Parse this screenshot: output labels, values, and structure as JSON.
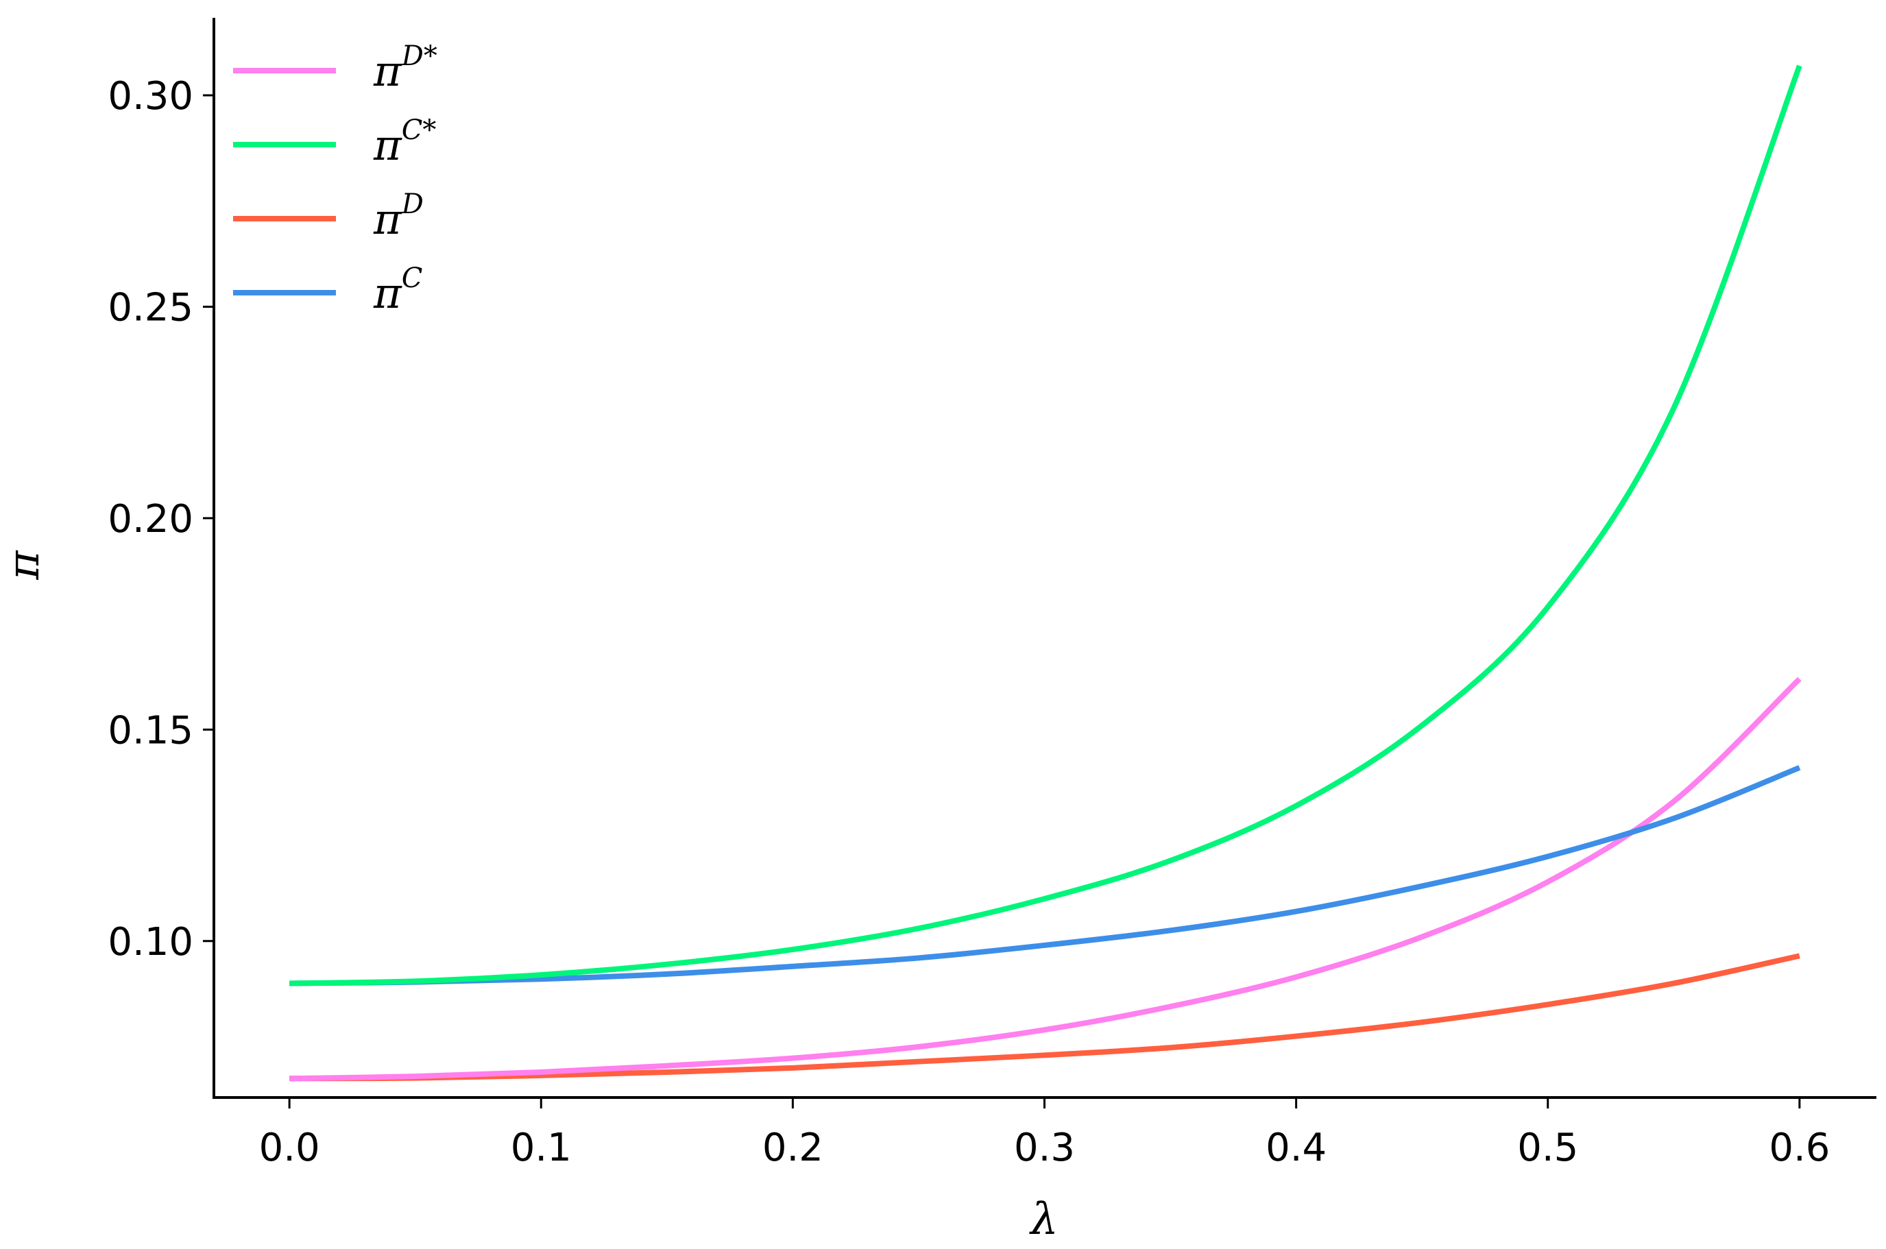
{
  "chart_data": {
    "type": "line",
    "xlabel": "λ",
    "ylabel": "π",
    "xlim": [
      -0.03,
      0.63
    ],
    "ylim": [
      0.063,
      0.318
    ],
    "xticks": [
      "0.0",
      "0.1",
      "0.2",
      "0.3",
      "0.4",
      "0.5",
      "0.6"
    ],
    "yticks": [
      "0.10",
      "0.15",
      "0.20",
      "0.25",
      "0.30"
    ],
    "legend_position": "top-left",
    "grid": false,
    "x": [
      0.0,
      0.05,
      0.1,
      0.15,
      0.2,
      0.25,
      0.3,
      0.35,
      0.4,
      0.45,
      0.5,
      0.55,
      0.6
    ],
    "series": [
      {
        "name": "π",
        "sup": "D*",
        "color": "#ff80ee",
        "values": [
          0.0675,
          0.068,
          0.069,
          0.0705,
          0.0723,
          0.075,
          0.079,
          0.0845,
          0.0915,
          0.101,
          0.114,
          0.133,
          0.162
        ]
      },
      {
        "name": "π",
        "sup": "C*",
        "color": "#00f57a",
        "values": [
          0.09,
          0.0905,
          0.092,
          0.0945,
          0.098,
          0.103,
          0.11,
          0.119,
          0.132,
          0.151,
          0.179,
          0.226,
          0.307
        ]
      },
      {
        "name": "π",
        "sup": "D",
        "color": "#ff5f3f",
        "values": [
          0.0675,
          0.0676,
          0.0682,
          0.069,
          0.07,
          0.0715,
          0.073,
          0.0748,
          0.0775,
          0.0808,
          0.085,
          0.09,
          0.0965
        ]
      },
      {
        "name": "π",
        "sup": "C",
        "color": "#3d8ee8",
        "values": [
          0.09,
          0.0903,
          0.091,
          0.0922,
          0.094,
          0.096,
          0.099,
          0.1025,
          0.107,
          0.113,
          0.12,
          0.129,
          0.141
        ]
      }
    ]
  }
}
